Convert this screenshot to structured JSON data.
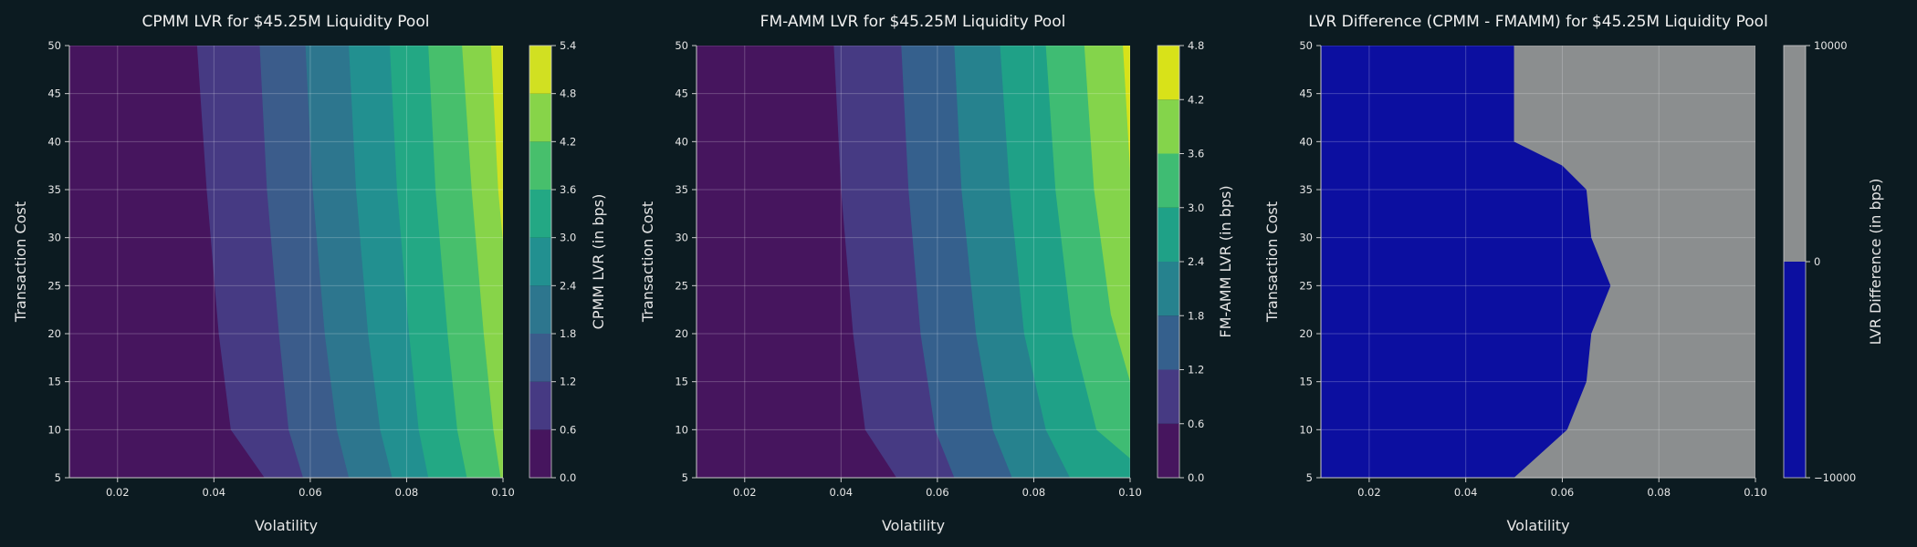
{
  "chart_data": [
    {
      "type": "contourf",
      "title": "CPMM LVR for $45.25M Liquidity Pool",
      "xlabel": "Volatility",
      "ylabel": "Transaction Cost",
      "xlim": [
        0.01,
        0.1
      ],
      "ylim": [
        5,
        50
      ],
      "xticks": [
        "0.02",
        "0.04",
        "0.06",
        "0.08",
        "0.10"
      ],
      "yticks": [
        "5",
        "10",
        "15",
        "20",
        "25",
        "30",
        "35",
        "40",
        "45",
        "50"
      ],
      "grid": true,
      "colorbar": {
        "label": "CPMM LVR (in bps)",
        "levels": [
          0.0,
          0.6,
          1.2,
          1.8,
          2.4,
          3.0,
          3.6,
          4.2,
          4.8,
          5.4
        ],
        "ticks": [
          "0.0",
          "0.6",
          "1.2",
          "1.8",
          "2.4",
          "3.0",
          "3.6",
          "4.2",
          "4.8",
          "5.4"
        ],
        "colors": [
          "#46155e",
          "#463a83",
          "#3b5c8b",
          "#2d768e",
          "#229090",
          "#23a884",
          "#47bf6c",
          "#87d449",
          "#d1e022"
        ]
      },
      "contour_lines": [
        {
          "level": 0.6,
          "points": [
            [
              0.0365,
              50
            ],
            [
              0.0385,
              35
            ],
            [
              0.041,
              20
            ],
            [
              0.0435,
              10
            ],
            [
              0.0505,
              5
            ]
          ]
        },
        {
          "level": 1.2,
          "points": [
            [
              0.0495,
              50
            ],
            [
              0.051,
              35
            ],
            [
              0.0535,
              20
            ],
            [
              0.0555,
              10
            ],
            [
              0.0585,
              5
            ]
          ]
        },
        {
          "level": 1.8,
          "points": [
            [
              0.059,
              50
            ],
            [
              0.0605,
              35
            ],
            [
              0.063,
              20
            ],
            [
              0.0655,
              10
            ],
            [
              0.068,
              5
            ]
          ]
        },
        {
          "level": 2.4,
          "points": [
            [
              0.068,
              50
            ],
            [
              0.0695,
              35
            ],
            [
              0.072,
              20
            ],
            [
              0.0745,
              10
            ],
            [
              0.077,
              5
            ]
          ]
        },
        {
          "level": 3.0,
          "points": [
            [
              0.0765,
              50
            ],
            [
              0.078,
              35
            ],
            [
              0.0805,
              20
            ],
            [
              0.0825,
              10
            ],
            [
              0.0845,
              5
            ]
          ]
        },
        {
          "level": 3.6,
          "points": [
            [
              0.0845,
              50
            ],
            [
              0.086,
              35
            ],
            [
              0.0885,
              20
            ],
            [
              0.0905,
              10
            ],
            [
              0.0925,
              5
            ]
          ]
        },
        {
          "level": 4.2,
          "points": [
            [
              0.0915,
              50
            ],
            [
              0.0935,
              35
            ],
            [
              0.096,
              20
            ],
            [
              0.098,
              10
            ],
            [
              0.0995,
              5
            ]
          ]
        },
        {
          "level": 4.8,
          "points": [
            [
              0.0975,
              50
            ],
            [
              0.099,
              35
            ],
            [
              0.1,
              29.5
            ]
          ]
        }
      ]
    },
    {
      "type": "contourf",
      "title": "FM-AMM LVR for $45.25M Liquidity Pool",
      "xlabel": "Volatility",
      "ylabel": "Transaction Cost",
      "xlim": [
        0.01,
        0.1
      ],
      "ylim": [
        5,
        50
      ],
      "xticks": [
        "0.02",
        "0.04",
        "0.06",
        "0.08",
        "0.10"
      ],
      "yticks": [
        "5",
        "10",
        "15",
        "20",
        "25",
        "30",
        "35",
        "40",
        "45",
        "50"
      ],
      "grid": true,
      "colorbar": {
        "label": "FM-AMM LVR (in bps)",
        "levels": [
          0.0,
          0.6,
          1.2,
          1.8,
          2.4,
          3.0,
          3.6,
          4.2,
          4.8
        ],
        "ticks": [
          "0.0",
          "0.6",
          "1.2",
          "1.8",
          "2.4",
          "3.0",
          "3.6",
          "4.2",
          "4.8"
        ],
        "colors": [
          "#46155e",
          "#463a83",
          "#35608d",
          "#26828e",
          "#1fa187",
          "#3fbc73",
          "#84d44b",
          "#d8e219"
        ]
      },
      "contour_lines": [
        {
          "level": 0.6,
          "points": [
            [
              0.0385,
              50
            ],
            [
              0.04,
              35
            ],
            [
              0.0425,
              20
            ],
            [
              0.045,
              10
            ],
            [
              0.0515,
              5
            ]
          ]
        },
        {
          "level": 1.2,
          "points": [
            [
              0.0525,
              50
            ],
            [
              0.054,
              35
            ],
            [
              0.0565,
              20
            ],
            [
              0.0595,
              10
            ],
            [
              0.0635,
              5
            ]
          ]
        },
        {
          "level": 1.8,
          "points": [
            [
              0.0635,
              50
            ],
            [
              0.065,
              35
            ],
            [
              0.068,
              20
            ],
            [
              0.0715,
              10
            ],
            [
              0.0755,
              5
            ]
          ]
        },
        {
          "level": 2.4,
          "points": [
            [
              0.073,
              50
            ],
            [
              0.075,
              35
            ],
            [
              0.078,
              20
            ],
            [
              0.0825,
              10
            ],
            [
              0.0875,
              5
            ]
          ]
        },
        {
          "level": 3.0,
          "points": [
            [
              0.0825,
              50
            ],
            [
              0.0845,
              35
            ],
            [
              0.088,
              20
            ],
            [
              0.093,
              10
            ],
            [
              0.1,
              7
            ]
          ]
        },
        {
          "level": 3.6,
          "points": [
            [
              0.0905,
              50
            ],
            [
              0.0925,
              35
            ],
            [
              0.096,
              22
            ],
            [
              0.1,
              15
            ]
          ]
        },
        {
          "level": 4.2,
          "points": [
            [
              0.0985,
              50
            ],
            [
              0.1,
              37
            ]
          ]
        }
      ]
    },
    {
      "type": "contourf",
      "title": "LVR Difference (CPMM - FMAMM) for $45.25M Liquidity Pool",
      "xlabel": "Volatility",
      "ylabel": "Transaction Cost",
      "xlim": [
        0.01,
        0.1
      ],
      "ylim": [
        5,
        50
      ],
      "xticks": [
        "0.02",
        "0.04",
        "0.06",
        "0.08",
        "0.10"
      ],
      "yticks": [
        "5",
        "10",
        "15",
        "20",
        "25",
        "30",
        "35",
        "40",
        "45",
        "50"
      ],
      "grid": true,
      "colorbar": {
        "label": "LVR Difference (in bps)",
        "levels": [
          -10000,
          0,
          10000
        ],
        "ticks": [
          "−10000",
          "0",
          "10000"
        ],
        "colors": [
          "#0c0fa0",
          "#8b8e8f"
        ]
      },
      "contour_lines": [
        {
          "level": 0,
          "points": [
            [
              0.05,
              50
            ],
            [
              0.05,
              40
            ],
            [
              0.06,
              37.5
            ],
            [
              0.065,
              35
            ],
            [
              0.066,
              30
            ],
            [
              0.07,
              25
            ],
            [
              0.066,
              20
            ],
            [
              0.065,
              15
            ],
            [
              0.061,
              10
            ],
            [
              0.05,
              5
            ]
          ]
        }
      ]
    }
  ]
}
